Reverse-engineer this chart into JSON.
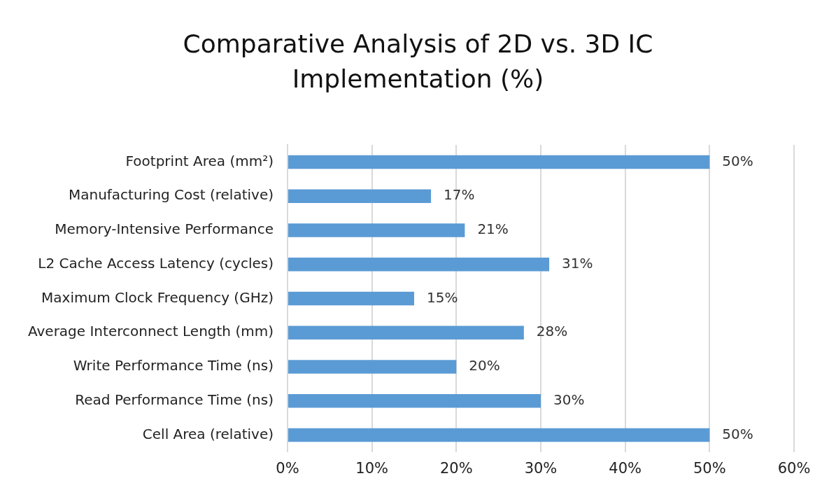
{
  "chart_data": {
    "type": "bar",
    "orientation": "horizontal",
    "title": "Comparative Analysis of 2D vs. 3D IC Implementation (%)",
    "categories": [
      "Footprint Area (mm²)",
      "Manufacturing Cost (relative)",
      "Memory-Intensive Performance",
      "L2 Cache Access Latency (cycles)",
      "Maximum Clock Frequency (GHz)",
      "Average Interconnect Length (mm)",
      "Write Performance Time (ns)",
      "Read Performance Time (ns)",
      "Cell Area (relative)"
    ],
    "values": [
      50,
      17,
      21,
      31,
      15,
      28,
      20,
      30,
      50
    ],
    "value_labels": [
      "50%",
      "17%",
      "21%",
      "31%",
      "15%",
      "28%",
      "20%",
      "30%",
      "50%"
    ],
    "color": "#5b9bd5",
    "xlim": [
      0,
      60
    ],
    "xticks": [
      {
        "value": 0,
        "label": "0%"
      },
      {
        "value": 10,
        "label": "10%"
      },
      {
        "value": 20,
        "label": "20%"
      },
      {
        "value": 30,
        "label": "30%"
      },
      {
        "value": 40,
        "label": "40%"
      },
      {
        "value": 50,
        "label": "50%"
      },
      {
        "value": 60,
        "label": "60%"
      }
    ],
    "grid": "x",
    "legend": false
  }
}
